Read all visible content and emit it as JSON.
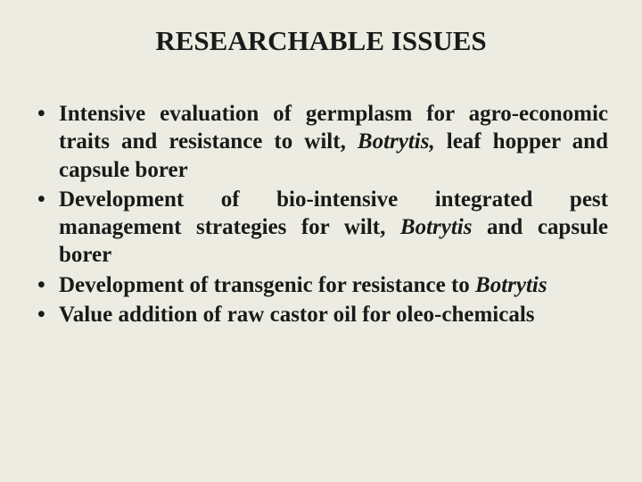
{
  "slide": {
    "title": "RESEARCHABLE ISSUES",
    "background_color": "#edece2",
    "title_fontsize": 31,
    "body_fontsize": 25,
    "text_color": "#1a1a1a",
    "bullets": [
      {
        "segments": [
          {
            "text": "Intensive evaluation of germplasm for agro-economic traits and resistance to wilt, ",
            "italic": false
          },
          {
            "text": "Botrytis,",
            "italic": true
          },
          {
            "text": " leaf hopper and capsule borer",
            "italic": false
          }
        ]
      },
      {
        "segments": [
          {
            "text": "Development of bio-intensive integrated pest management strategies for wilt, ",
            "italic": false
          },
          {
            "text": "Botrytis",
            "italic": true
          },
          {
            "text": " and capsule borer",
            "italic": false
          }
        ]
      },
      {
        "segments": [
          {
            "text": "Development of transgenic for resistance to ",
            "italic": false
          },
          {
            "text": "Botrytis",
            "italic": true
          }
        ]
      },
      {
        "segments": [
          {
            "text": "Value addition of raw castor oil for oleo-chemicals",
            "italic": false
          }
        ]
      }
    ]
  }
}
